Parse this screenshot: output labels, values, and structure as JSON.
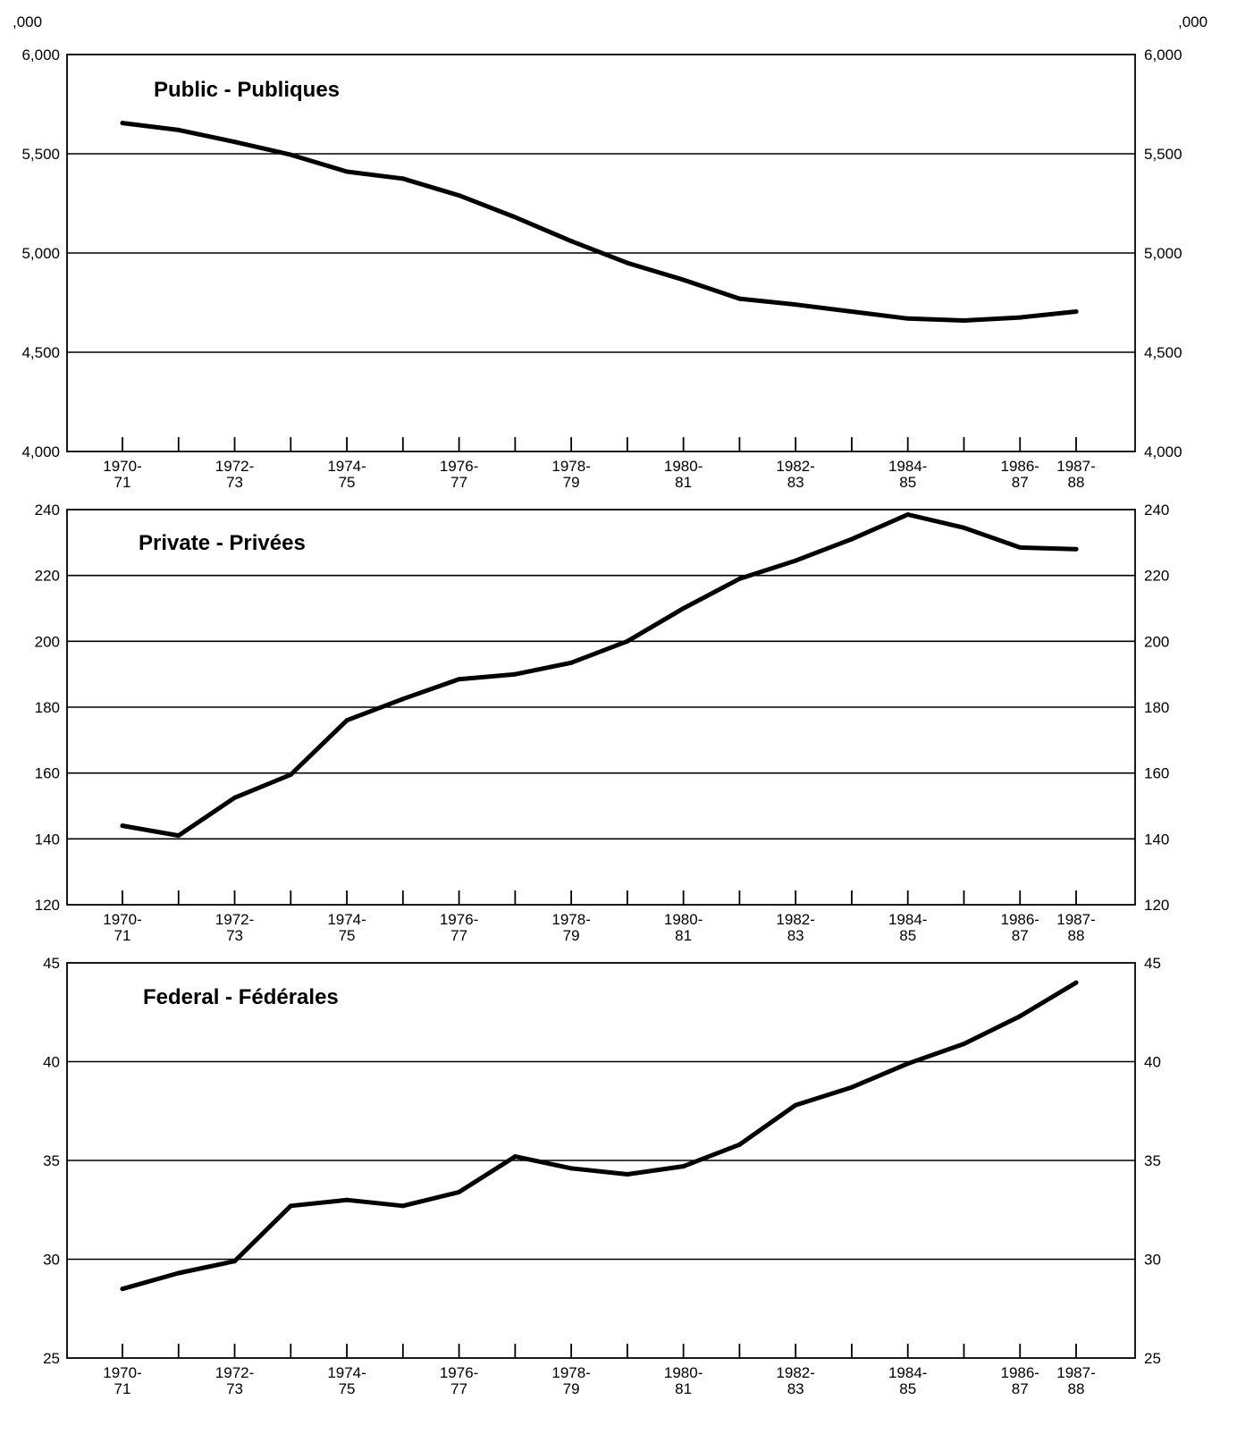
{
  "unit_label": ",000",
  "x_tick_labels": [
    [
      "1970-",
      "71"
    ],
    [
      "1972-",
      "73"
    ],
    [
      "1974-",
      "75"
    ],
    [
      "1976-",
      "77"
    ],
    [
      "1978-",
      "79"
    ],
    [
      "1980-",
      "81"
    ],
    [
      "1982-",
      "83"
    ],
    [
      "1984-",
      "85"
    ],
    [
      "1986-",
      "87"
    ],
    [
      "1987-",
      "88"
    ]
  ],
  "chart_data": [
    {
      "type": "line",
      "title": "Public - Publiques",
      "x": [
        "1970-71",
        "1971-72",
        "1972-73",
        "1973-74",
        "1974-75",
        "1975-76",
        "1976-77",
        "1977-78",
        "1978-79",
        "1979-80",
        "1980-81",
        "1981-82",
        "1982-83",
        "1983-84",
        "1984-85",
        "1985-86",
        "1986-87",
        "1987-88"
      ],
      "values": [
        5655,
        5620,
        5560,
        5495,
        5410,
        5375,
        5290,
        5180,
        5060,
        4950,
        4865,
        4770,
        4740,
        4705,
        4670,
        4660,
        4675,
        4705
      ],
      "ylim": [
        4000,
        6000
      ],
      "yticks": [
        "4,000",
        "4,500",
        "5,000",
        "5,500",
        "6,000"
      ],
      "ytick_values": [
        4000,
        4500,
        5000,
        5500,
        6000
      ],
      "grid": true
    },
    {
      "type": "line",
      "title": "Private - Privées",
      "x": [
        "1970-71",
        "1971-72",
        "1972-73",
        "1973-74",
        "1974-75",
        "1975-76",
        "1976-77",
        "1977-78",
        "1978-79",
        "1979-80",
        "1980-81",
        "1981-82",
        "1982-83",
        "1983-84",
        "1984-85",
        "1985-86",
        "1986-87",
        "1987-88"
      ],
      "values": [
        144,
        141,
        152.5,
        159.5,
        176,
        182.5,
        188.5,
        190,
        193.5,
        200,
        210,
        219,
        224.5,
        231,
        238.5,
        234.5,
        228.5,
        228
      ],
      "ylim": [
        120,
        240
      ],
      "yticks": [
        "120",
        "140",
        "160",
        "180",
        "200",
        "220",
        "240"
      ],
      "ytick_values": [
        120,
        140,
        160,
        180,
        200,
        220,
        240
      ],
      "grid": true
    },
    {
      "type": "line",
      "title": "Federal - Fédérales",
      "x": [
        "1970-71",
        "1971-72",
        "1972-73",
        "1973-74",
        "1974-75",
        "1975-76",
        "1976-77",
        "1977-78",
        "1978-79",
        "1979-80",
        "1980-81",
        "1981-82",
        "1982-83",
        "1983-84",
        "1984-85",
        "1985-86",
        "1986-87",
        "1987-88"
      ],
      "values": [
        28.5,
        29.3,
        29.9,
        32.7,
        33.0,
        32.7,
        33.4,
        35.2,
        34.6,
        34.3,
        34.7,
        35.8,
        37.8,
        38.7,
        39.9,
        40.9,
        42.3,
        44.0
      ],
      "ylim": [
        25,
        45
      ],
      "yticks": [
        "25",
        "30",
        "35",
        "40",
        "45"
      ],
      "ytick_values": [
        25,
        30,
        35,
        40,
        45
      ],
      "grid": true
    }
  ]
}
